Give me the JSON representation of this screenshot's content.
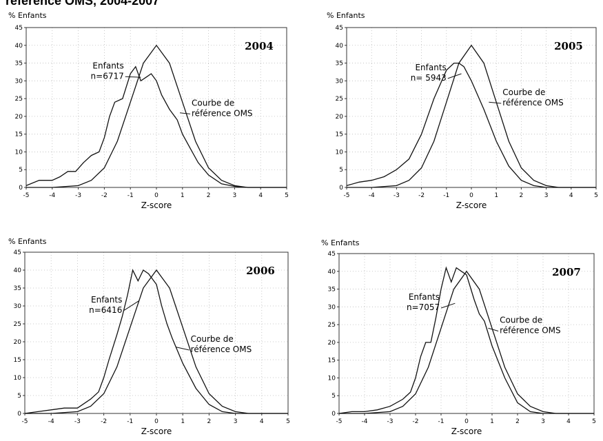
{
  "header": {
    "title": "référence OMS, 2004-2007"
  },
  "colors": {
    "curve": "#111111",
    "frame": "#333333"
  },
  "chart_data": [
    {
      "type": "line",
      "year_label": "2004",
      "ylabel": "% Enfants",
      "xlabel": "Z-score",
      "xlim": [
        -5,
        5
      ],
      "ylim": [
        0,
        45
      ],
      "grid": "dotted",
      "xticks": [
        -5,
        -4,
        -3,
        -2,
        -1,
        0,
        1,
        2,
        3,
        4,
        5
      ],
      "yticks": [
        0,
        5,
        10,
        15,
        20,
        25,
        30,
        35,
        40,
        45
      ],
      "series": [
        {
          "x": [
            -5,
            -4.5,
            -4,
            -3.7,
            -3.4,
            -3.1,
            -2.8,
            -2.5,
            -2.2,
            -2,
            -1.8,
            -1.6,
            -1.3,
            -1,
            -0.8,
            -0.6,
            -0.4,
            -0.2,
            0,
            0.2,
            0.5,
            0.8,
            1,
            1.3,
            1.6,
            2,
            2.5,
            3,
            3.5,
            4,
            5
          ],
          "y": [
            0.5,
            2,
            2,
            3,
            4.5,
            4.5,
            7,
            9,
            10,
            14,
            20,
            24,
            25,
            32,
            34,
            30,
            31,
            32,
            30,
            26,
            22,
            19,
            15,
            11,
            7,
            3.5,
            1,
            0.3,
            0,
            0,
            0
          ]
        },
        {
          "x": [
            -5,
            -4,
            -3,
            -2.5,
            -2,
            -1.5,
            -1,
            -0.5,
            0,
            0.5,
            1,
            1.5,
            2,
            2.5,
            3,
            3.5,
            4,
            5
          ],
          "y": [
            0,
            0,
            0.5,
            2,
            5.5,
            13,
            24,
            35,
            40,
            35,
            24,
            13,
            5.5,
            2,
            0.5,
            0,
            0,
            0
          ]
        }
      ],
      "annotations": [
        {
          "lines": [
            "Enfants",
            "n=6717"
          ],
          "x": -1.25,
          "y": 33.5
        },
        {
          "lines": [
            "Courbe de",
            "référence OMS"
          ],
          "x": 1.35,
          "y": 23
        }
      ]
    },
    {
      "type": "line",
      "year_label": "2005",
      "ylabel": "% Enfants",
      "xlabel": "Z-score",
      "xlim": [
        -5,
        5
      ],
      "ylim": [
        0,
        45
      ],
      "grid": "dotted",
      "xticks": [
        -5,
        -4,
        -3,
        -2,
        -1,
        0,
        1,
        2,
        3,
        4,
        5
      ],
      "yticks": [
        0,
        5,
        10,
        15,
        20,
        25,
        30,
        35,
        40,
        45
      ],
      "series": [
        {
          "x": [
            -5,
            -4.5,
            -4,
            -3.5,
            -3,
            -2.5,
            -2,
            -1.5,
            -1,
            -0.7,
            -0.5,
            -0.3,
            0,
            0.5,
            1,
            1.5,
            2,
            2.5,
            3,
            3.5,
            4,
            5
          ],
          "y": [
            0.5,
            1.5,
            2,
            3,
            5,
            8,
            15,
            25,
            33,
            35,
            35,
            34,
            30,
            22,
            13,
            6,
            2,
            0.5,
            0,
            0,
            0,
            0
          ]
        },
        {
          "x": [
            -5,
            -4,
            -3,
            -2.5,
            -2,
            -1.5,
            -1,
            -0.5,
            0,
            0.5,
            1,
            1.5,
            2,
            2.5,
            3,
            3.5,
            4,
            5
          ],
          "y": [
            0,
            0,
            0.5,
            2,
            5.5,
            13,
            24,
            35,
            40,
            35,
            24,
            13,
            5.5,
            2,
            0.5,
            0,
            0,
            0
          ]
        }
      ],
      "annotations": [
        {
          "lines": [
            "Enfants",
            "n= 5943"
          ],
          "x": -1.0,
          "y": 33
        },
        {
          "lines": [
            "Courbe de",
            "référence OMS"
          ],
          "x": 1.25,
          "y": 26
        }
      ]
    },
    {
      "type": "line",
      "year_label": "2006",
      "ylabel": "% Enfants",
      "xlabel": "Z-score",
      "xlim": [
        -5,
        5
      ],
      "ylim": [
        0,
        45
      ],
      "grid": "dotted",
      "xticks": [
        -5,
        -4,
        -3,
        -2,
        -1,
        0,
        1,
        2,
        3,
        4,
        5
      ],
      "yticks": [
        0,
        5,
        10,
        15,
        20,
        25,
        30,
        35,
        40,
        45
      ],
      "series": [
        {
          "x": [
            -5,
            -4.5,
            -4,
            -3.5,
            -3,
            -2.5,
            -2.2,
            -2,
            -1.8,
            -1.5,
            -1.3,
            -1.1,
            -0.9,
            -0.7,
            -0.5,
            -0.3,
            0,
            0.2,
            0.4,
            0.6,
            1,
            1.5,
            2,
            2.5,
            3,
            3.5,
            4,
            5
          ],
          "y": [
            0,
            0.5,
            1,
            1.5,
            1.5,
            4,
            6,
            10,
            15,
            22,
            27,
            33,
            40,
            37,
            40,
            39,
            36,
            30,
            25,
            21,
            14,
            7,
            2.5,
            0.5,
            0,
            0,
            0,
            0
          ]
        },
        {
          "x": [
            -5,
            -4,
            -3,
            -2.5,
            -2,
            -1.5,
            -1,
            -0.5,
            0,
            0.5,
            1,
            1.5,
            2,
            2.5,
            3,
            3.5,
            4,
            5
          ],
          "y": [
            0,
            0,
            0.5,
            2,
            5.5,
            13,
            24,
            35,
            40,
            35,
            24,
            13,
            5.5,
            2,
            0.5,
            0,
            0,
            0
          ]
        }
      ],
      "annotations": [
        {
          "lines": [
            "Enfants",
            "n=6416"
          ],
          "x": -1.3,
          "y": 31
        },
        {
          "lines": [
            "Courbe de",
            "référence OMS"
          ],
          "x": 1.3,
          "y": 20
        }
      ]
    },
    {
      "type": "line",
      "year_label": "2007",
      "ylabel": "% Enfants",
      "xlabel": "Z-score",
      "xlim": [
        -5,
        5
      ],
      "ylim": [
        0,
        45
      ],
      "grid": "dotted",
      "xticks": [
        -5,
        -4,
        -3,
        -2,
        -1,
        0,
        1,
        2,
        3,
        4,
        5
      ],
      "yticks": [
        0,
        5,
        10,
        15,
        20,
        25,
        30,
        35,
        40,
        45
      ],
      "series": [
        {
          "x": [
            -5,
            -4.5,
            -4,
            -3.5,
            -3,
            -2.5,
            -2.2,
            -2,
            -1.8,
            -1.6,
            -1.4,
            -1.2,
            -1,
            -0.8,
            -0.6,
            -0.4,
            -0.2,
            0,
            0.3,
            0.5,
            0.7,
            1,
            1.5,
            2,
            2.5,
            3,
            3.5,
            4,
            5
          ],
          "y": [
            0,
            0.5,
            0.5,
            1,
            2,
            4,
            6,
            10,
            16,
            20,
            20,
            27,
            35,
            41,
            37,
            41,
            40,
            39,
            32,
            28,
            26,
            19,
            10,
            3,
            0.5,
            0,
            0,
            0,
            0
          ]
        },
        {
          "x": [
            -5,
            -4,
            -3,
            -2.5,
            -2,
            -1.5,
            -1,
            -0.5,
            0,
            0.5,
            1,
            1.5,
            2,
            2.5,
            3,
            3.5,
            4,
            5
          ],
          "y": [
            0,
            0,
            0.5,
            2,
            5.5,
            13,
            24,
            35,
            40,
            35,
            24,
            13,
            5.5,
            2,
            0.5,
            0,
            0,
            0
          ]
        }
      ],
      "annotations": [
        {
          "lines": [
            "Enfants",
            "n=7057"
          ],
          "x": -1.05,
          "y": 32
        },
        {
          "lines": [
            "Courbe de",
            "référence OMS"
          ],
          "x": 1.3,
          "y": 25.5
        }
      ]
    }
  ]
}
